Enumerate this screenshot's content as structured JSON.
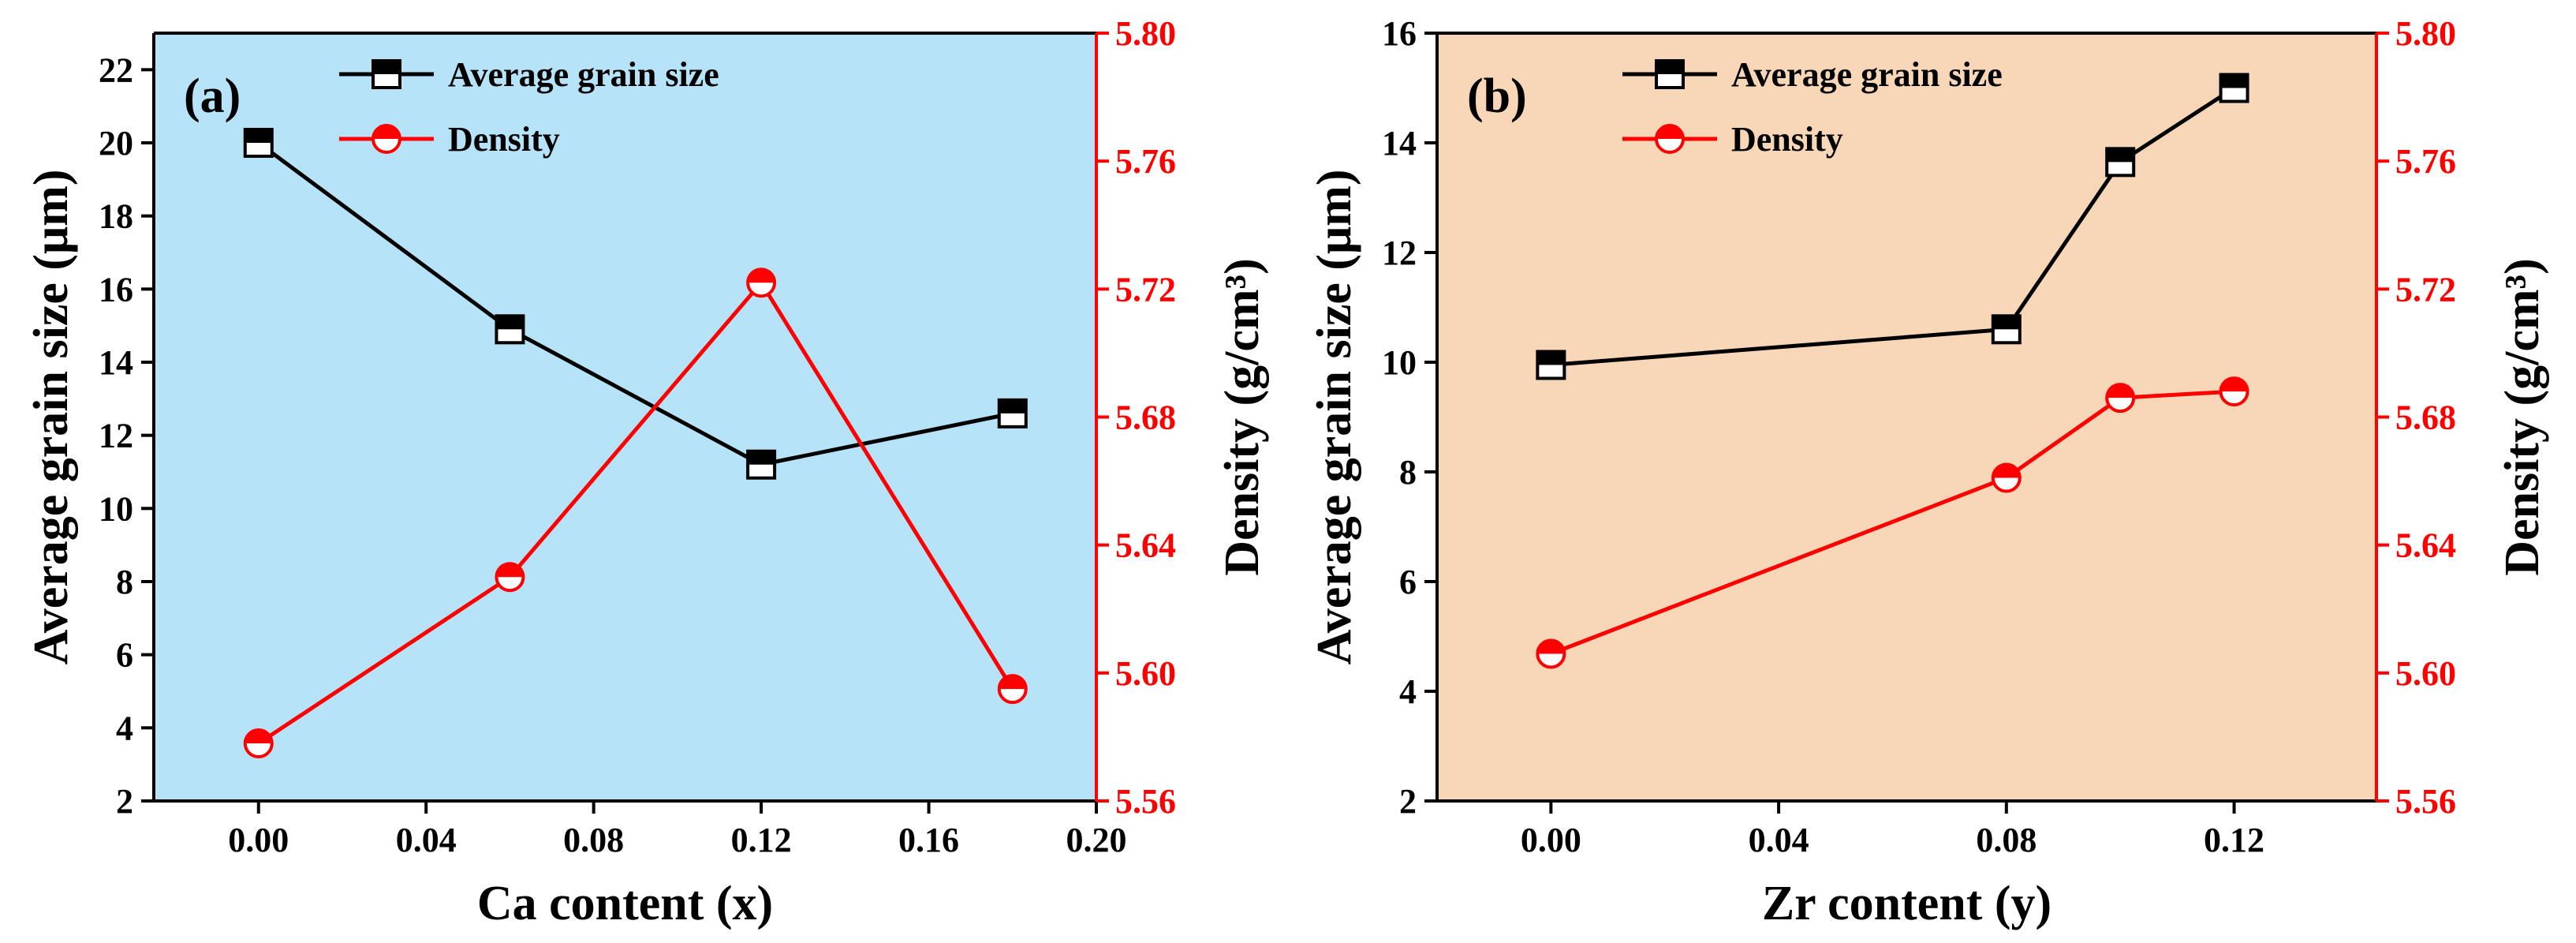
{
  "chart_data": [
    {
      "type": "line",
      "panel_label": "(a)",
      "background_color": "#b6e3f8",
      "xlabel": "Ca content (x)",
      "ylabel_left": "Average grain size (μm)",
      "ylabel_right": "Density (g/cm³)",
      "xlim": [
        -0.025,
        0.2
      ],
      "ylim_left": [
        2,
        23
      ],
      "ylim_right": [
        5.56,
        5.8
      ],
      "xticks": [
        "0.00",
        "0.04",
        "0.08",
        "0.12",
        "0.16",
        "0.20"
      ],
      "yticks_left": [
        "2",
        "4",
        "6",
        "8",
        "10",
        "12",
        "14",
        "16",
        "18",
        "20",
        "22"
      ],
      "yticks_right": [
        "5.56",
        "5.60",
        "5.64",
        "5.68",
        "5.72",
        "5.76",
        "5.80"
      ],
      "legend_position": "top-center",
      "series": [
        {
          "name": "Average grain size",
          "axis": "left",
          "color": "#000000",
          "marker": "half-filled-square",
          "x": [
            0.0,
            0.06,
            0.12,
            0.18
          ],
          "y": [
            20.0,
            14.9,
            11.2,
            12.6
          ]
        },
        {
          "name": "Density",
          "axis": "right",
          "color": "#ff0000",
          "marker": "half-filled-circle",
          "x": [
            0.0,
            0.06,
            0.12,
            0.18
          ],
          "y": [
            5.578,
            5.63,
            5.722,
            5.595
          ]
        }
      ]
    },
    {
      "type": "line",
      "panel_label": "(b)",
      "background_color": "#f8d7b9",
      "xlabel": "Zr content (y)",
      "ylabel_left": "Average grain size (μm)",
      "ylabel_right": "Density (g/cm³)",
      "xlim": [
        -0.02,
        0.145
      ],
      "ylim_left": [
        2,
        16
      ],
      "ylim_right": [
        5.56,
        5.8
      ],
      "xticks": [
        "0.00",
        "0.04",
        "0.08",
        "0.12"
      ],
      "yticks_left": [
        "2",
        "4",
        "6",
        "8",
        "10",
        "12",
        "14",
        "16"
      ],
      "yticks_right": [
        "5.56",
        "5.60",
        "5.64",
        "5.68",
        "5.72",
        "5.76",
        "5.80"
      ],
      "legend_position": "top-center",
      "series": [
        {
          "name": "Average grain size",
          "axis": "left",
          "color": "#000000",
          "marker": "half-filled-square",
          "x": [
            0.0,
            0.08,
            0.1,
            0.12
          ],
          "y": [
            9.95,
            10.6,
            13.65,
            15.0
          ]
        },
        {
          "name": "Density",
          "axis": "right",
          "color": "#ff0000",
          "marker": "half-filled-circle",
          "x": [
            0.0,
            0.08,
            0.1,
            0.12
          ],
          "y": [
            5.606,
            5.661,
            5.686,
            5.688
          ]
        }
      ]
    }
  ]
}
